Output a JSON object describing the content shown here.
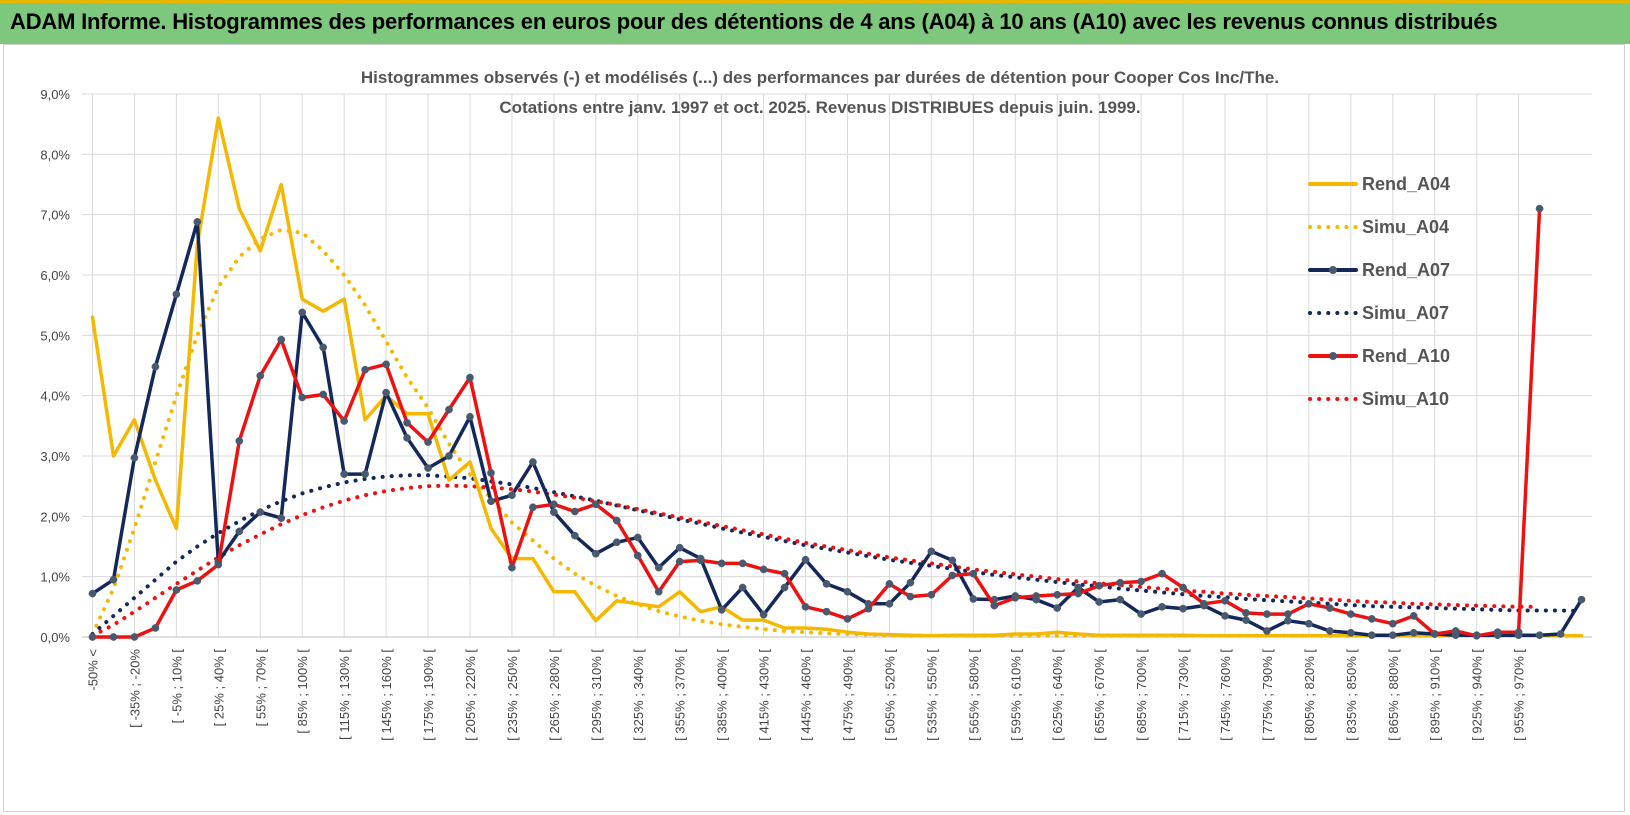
{
  "header": {
    "title": "ADAM Informe. Histogrammes des performances en euros pour des détentions de 4 ans (A04) à 10 ans (A10) avec les revenus connus distribués"
  },
  "chart_data": {
    "type": "line",
    "title_line1": "Histogrammes observés (-) et modélisés (...) des performances par durées de détention pour Cooper Cos Inc/The.",
    "title_line2": "Cotations entre janv. 1997 et oct. 2025.  Revenus DISTRIBUES depuis juin. 1999.",
    "ylim": [
      0,
      9
    ],
    "yticks": [
      "0,0%",
      "1,0%",
      "2,0%",
      "3,0%",
      "4,0%",
      "5,0%",
      "6,0%",
      "7,0%",
      "8,0%",
      "9,0%"
    ],
    "xlabels": [
      "-50% <",
      "[ -35% ; -20%",
      "[ -5% ; 10% [",
      "[ 25% ; 40% [",
      "[ 55% ; 70% [",
      "[ 85% ; 100% [",
      "[ 115% ; 130% [",
      "[ 145% ; 160% [",
      "[ 175% ; 190% [",
      "[ 205% ; 220% [",
      "[ 235% ; 250% [",
      "[ 265% ; 280% [",
      "[ 295% ; 310% [",
      "[ 325% ; 340% [",
      "[ 355% ; 370% [",
      "[ 385% ; 400% [",
      "[ 415% ; 430% [",
      "[ 445% ; 460% [",
      "[ 475% ; 490% [",
      "[ 505% ; 520% [",
      "[ 535% ; 550% [",
      "[ 565% ; 580% [",
      "[ 595% ; 610% [",
      "[ 625% ; 640% [",
      "[ 655% ; 670% [",
      "[ 685% ; 700% [",
      "[ 715% ; 730% [",
      "[ 745% ; 760% [",
      "[ 775% ; 790% [",
      "[ 805% ; 820% [",
      "[ 835% ; 850% [",
      "[ 865% ; 880% [",
      "[ 895% ; 910% [",
      "[ 925% ; 940% [",
      "[ 955% ; 970% ["
    ],
    "series": [
      {
        "name": "Rend_A04",
        "color": "#f5b800",
        "style": "solid",
        "markers": false,
        "values": [
          5.3,
          3.0,
          3.6,
          2.6,
          1.8,
          6.5,
          8.6,
          7.1,
          6.4,
          7.5,
          5.6,
          5.4,
          5.6,
          3.6,
          4.0,
          3.7,
          3.7,
          2.6,
          2.9,
          1.8,
          1.3,
          1.3,
          0.75,
          0.75,
          0.27,
          0.6,
          0.55,
          0.5,
          0.75,
          0.42,
          0.5,
          0.28,
          0.28,
          0.15,
          0.15,
          0.13,
          0.08,
          0.05,
          0.04,
          0.03,
          0.02,
          0.03,
          0.03,
          0.03,
          0.05,
          0.05,
          0.08,
          0.05,
          0.03,
          0.03,
          0.03,
          0.03,
          0.03,
          0.02,
          0.02,
          0.02,
          0.02,
          0.02,
          0.02,
          0.02,
          0.02,
          0.02,
          0.02,
          0.02,
          0.02,
          0.02,
          0.02,
          0.02,
          0.02,
          0.02,
          0.02,
          0.02
        ]
      },
      {
        "name": "Simu_A04",
        "color": "#f5b800",
        "style": "dotted",
        "markers": false,
        "values": [
          0.05,
          0.8,
          1.8,
          2.9,
          4.0,
          5.0,
          5.8,
          6.3,
          6.6,
          6.75,
          6.7,
          6.4,
          6.0,
          5.5,
          4.9,
          4.3,
          3.8,
          3.2,
          2.7,
          2.3,
          1.9,
          1.6,
          1.3,
          1.05,
          0.85,
          0.68,
          0.54,
          0.43,
          0.34,
          0.27,
          0.21,
          0.17,
          0.13,
          0.1,
          0.08,
          0.06,
          0.05,
          0.04,
          0.03,
          0.02,
          0.02,
          0.02,
          0.02,
          0.02,
          0.02,
          0.02,
          0.02,
          0.02,
          0.02,
          0.02,
          0.02,
          0.02,
          0.02,
          0.02,
          0.02,
          0.02,
          0.02,
          0.02,
          0.02,
          0.02,
          0.02,
          0.02,
          0.02,
          0.02,
          0.02,
          0.02,
          0.02,
          0.02,
          0.02,
          0.02,
          0.02,
          0.02
        ]
      },
      {
        "name": "Rend_A07",
        "color": "#14285a",
        "style": "solid",
        "markers": true,
        "values": [
          0.72,
          0.95,
          2.97,
          4.48,
          5.68,
          6.88,
          1.25,
          1.75,
          2.07,
          1.97,
          5.38,
          4.8,
          2.7,
          2.7,
          4.05,
          3.3,
          2.8,
          3.0,
          3.65,
          2.25,
          2.35,
          2.9,
          2.07,
          1.68,
          1.38,
          1.57,
          1.65,
          1.15,
          1.48,
          1.3,
          0.45,
          0.82,
          0.37,
          0.82,
          1.28,
          0.88,
          0.75,
          0.55,
          0.55,
          0.9,
          1.42,
          1.27,
          0.63,
          0.62,
          0.68,
          0.62,
          0.48,
          0.82,
          0.58,
          0.62,
          0.38,
          0.5,
          0.47,
          0.52,
          0.35,
          0.28,
          0.1,
          0.27,
          0.22,
          0.1,
          0.07,
          0.03,
          0.03,
          0.07,
          0.05,
          0.03,
          0.03,
          0.03,
          0.03,
          0.03,
          0.05,
          0.62
        ]
      },
      {
        "name": "Simu_A07",
        "color": "#14285a",
        "style": "dotted",
        "markers": false,
        "values": [
          0.05,
          0.35,
          0.65,
          0.95,
          1.25,
          1.5,
          1.72,
          1.92,
          2.1,
          2.25,
          2.38,
          2.48,
          2.56,
          2.62,
          2.66,
          2.68,
          2.68,
          2.66,
          2.63,
          2.58,
          2.53,
          2.47,
          2.4,
          2.33,
          2.26,
          2.18,
          2.1,
          2.03,
          1.95,
          1.88,
          1.8,
          1.73,
          1.66,
          1.59,
          1.52,
          1.46,
          1.4,
          1.34,
          1.28,
          1.23,
          1.18,
          1.13,
          1.08,
          1.03,
          0.99,
          0.95,
          0.91,
          0.87,
          0.84,
          0.8,
          0.77,
          0.74,
          0.71,
          0.68,
          0.66,
          0.63,
          0.61,
          0.59,
          0.57,
          0.55,
          0.53,
          0.51,
          0.5,
          0.49,
          0.48,
          0.47,
          0.46,
          0.45,
          0.44,
          0.44,
          0.44,
          0.43
        ]
      },
      {
        "name": "Rend_A10",
        "color": "#ee1111",
        "style": "solid",
        "markers": true,
        "values": [
          0.0,
          0.0,
          0.0,
          0.15,
          0.78,
          0.93,
          1.2,
          3.25,
          4.33,
          4.93,
          3.97,
          4.02,
          3.58,
          4.43,
          4.52,
          3.55,
          3.23,
          3.77,
          4.3,
          2.72,
          1.15,
          2.15,
          2.2,
          2.08,
          2.2,
          1.93,
          1.35,
          0.75,
          1.25,
          1.27,
          1.22,
          1.22,
          1.12,
          1.05,
          0.5,
          0.42,
          0.3,
          0.47,
          0.88,
          0.67,
          0.7,
          1.02,
          1.05,
          0.52,
          0.65,
          0.68,
          0.7,
          0.72,
          0.85,
          0.9,
          0.92,
          1.05,
          0.82,
          0.55,
          0.6,
          0.4,
          0.38,
          0.38,
          0.55,
          0.48,
          0.38,
          0.3,
          0.22,
          0.35,
          0.05,
          0.1,
          0.02,
          0.08,
          0.08,
          7.1
        ]
      },
      {
        "name": "Simu_A10",
        "color": "#ee1111",
        "style": "dotted",
        "markers": false,
        "values": [
          0.02,
          0.2,
          0.42,
          0.65,
          0.88,
          1.1,
          1.32,
          1.52,
          1.7,
          1.87,
          2.02,
          2.15,
          2.26,
          2.35,
          2.42,
          2.47,
          2.5,
          2.51,
          2.5,
          2.48,
          2.45,
          2.41,
          2.36,
          2.31,
          2.25,
          2.19,
          2.12,
          2.05,
          1.98,
          1.91,
          1.84,
          1.77,
          1.7,
          1.63,
          1.56,
          1.5,
          1.44,
          1.38,
          1.32,
          1.27,
          1.22,
          1.17,
          1.12,
          1.08,
          1.04,
          1.0,
          0.96,
          0.92,
          0.89,
          0.86,
          0.83,
          0.8,
          0.77,
          0.75,
          0.72,
          0.7,
          0.68,
          0.66,
          0.64,
          0.62,
          0.6,
          0.58,
          0.57,
          0.55,
          0.54,
          0.53,
          0.52,
          0.51,
          0.5,
          0.5
        ]
      }
    ],
    "legend_position": "top-right"
  }
}
